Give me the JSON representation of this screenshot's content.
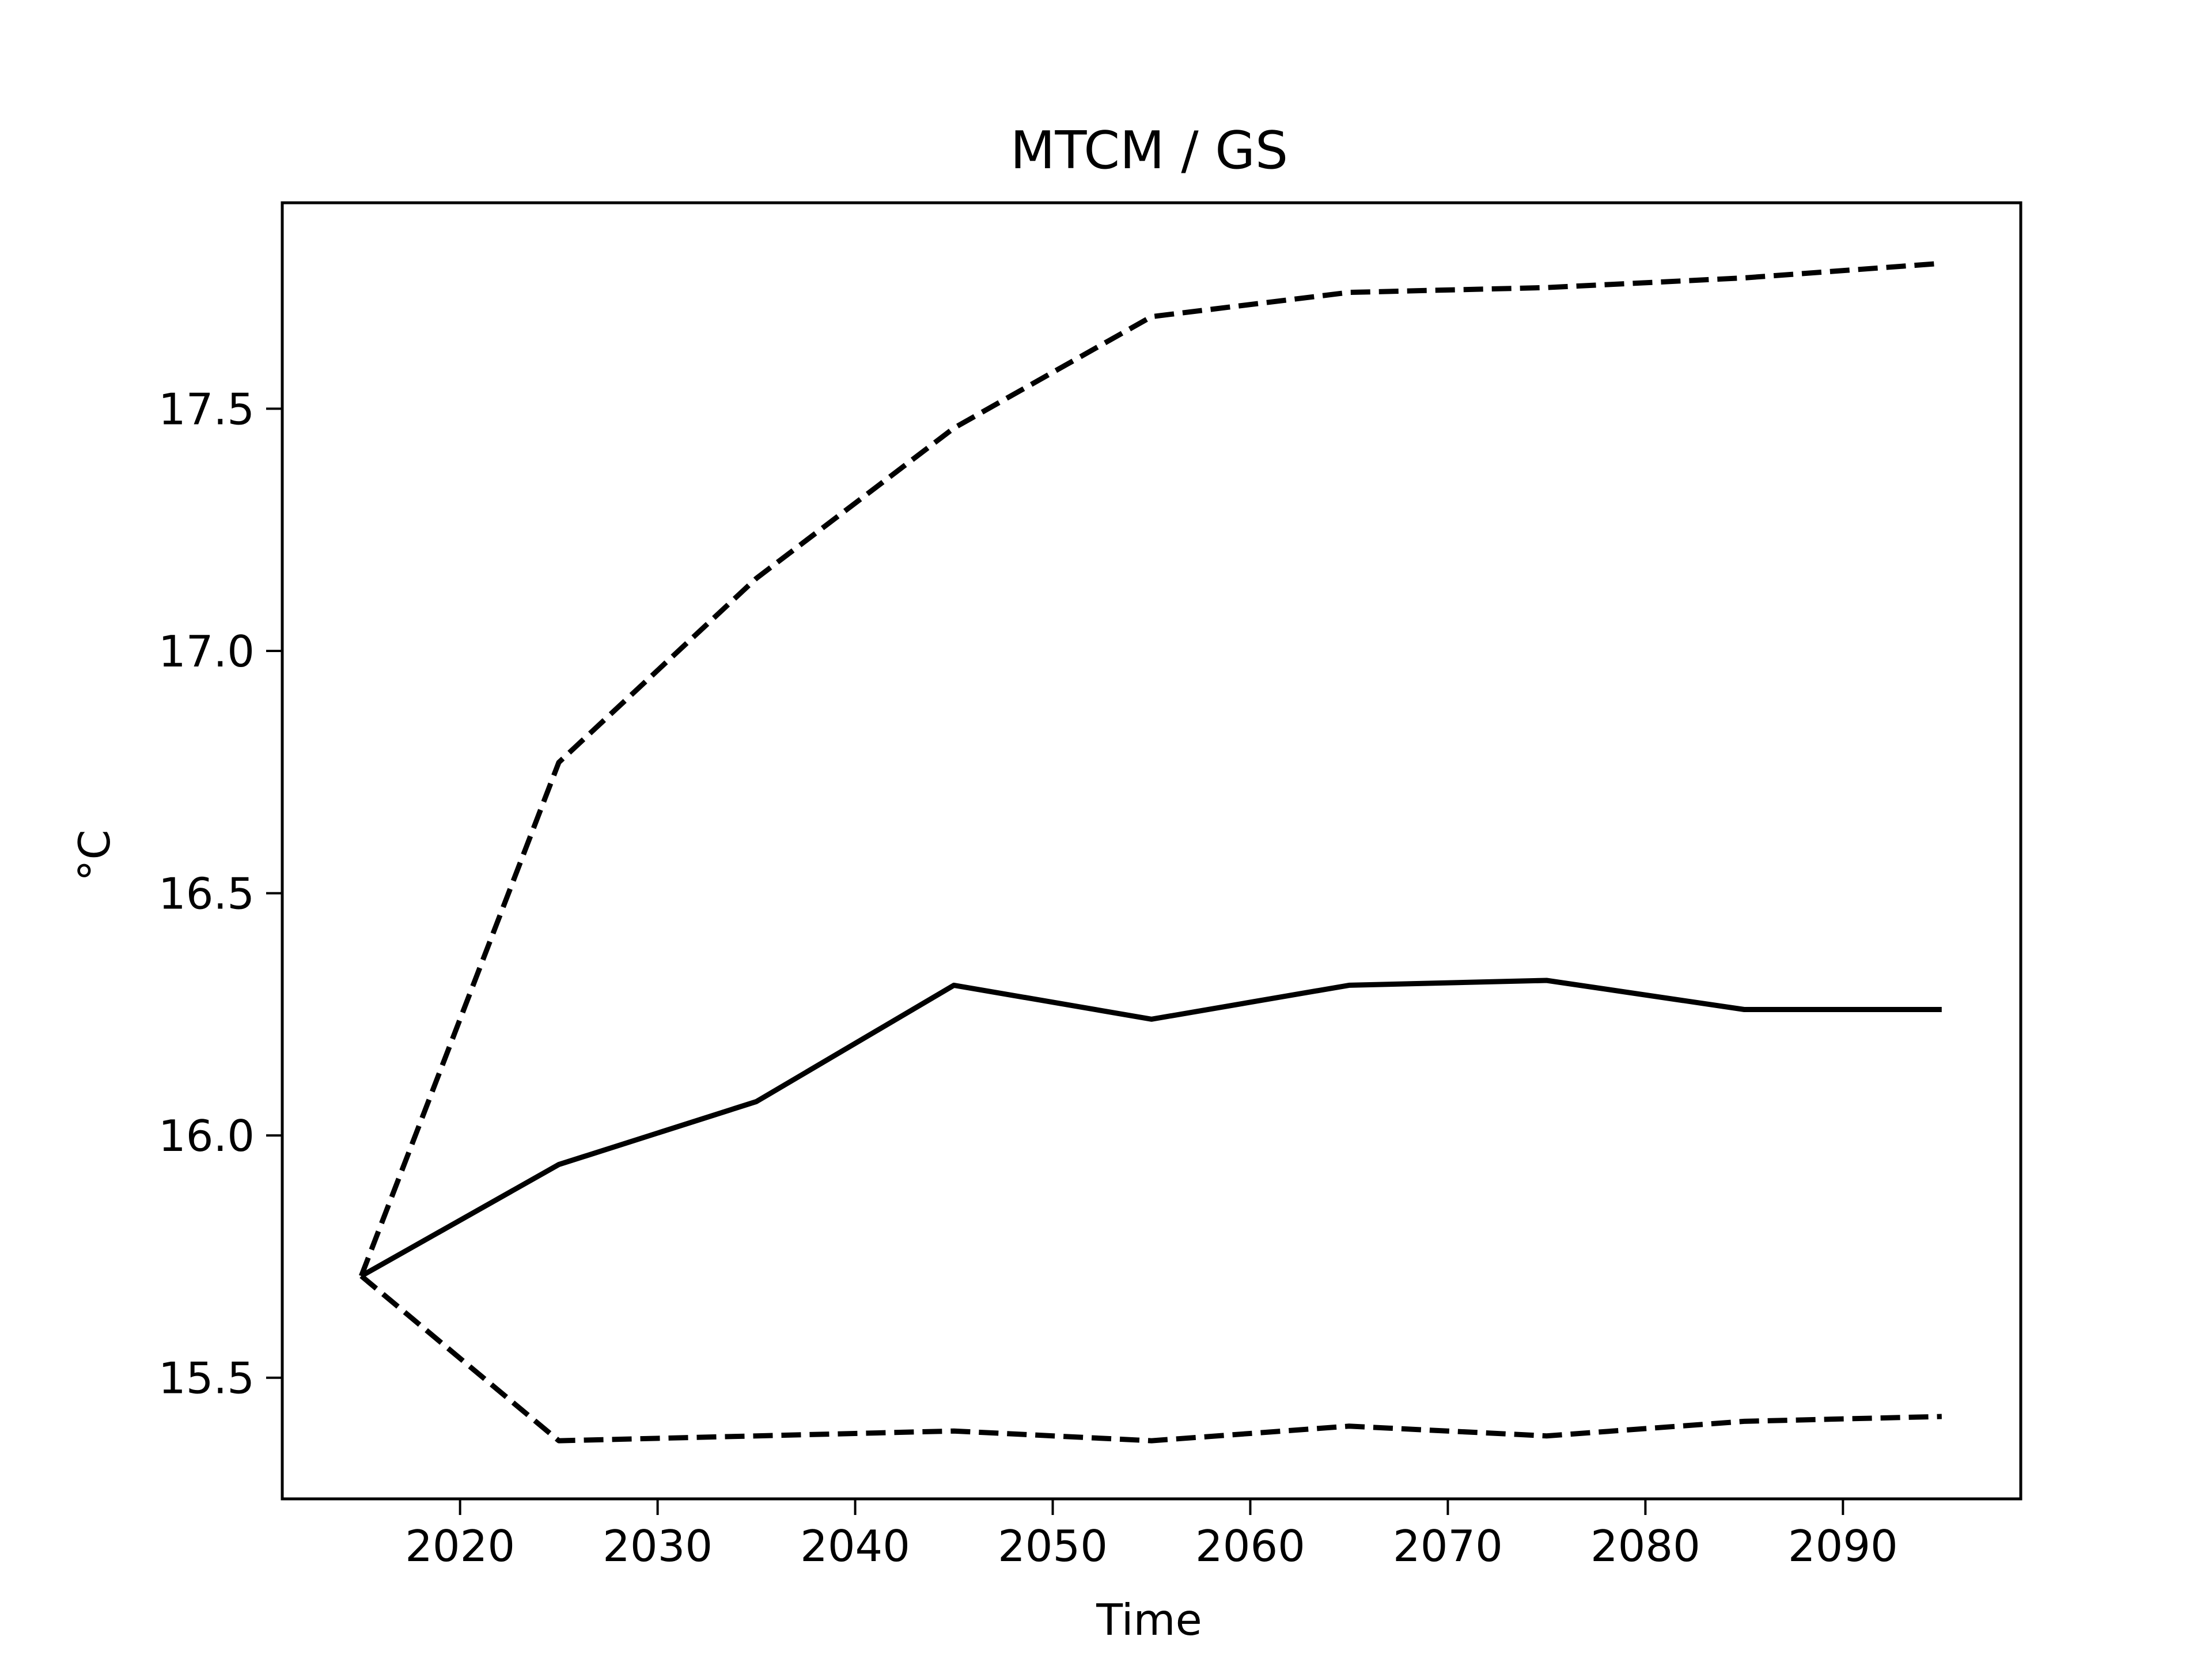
{
  "chart_data": {
    "type": "line",
    "title": "MTCM / GS",
    "xlabel": "Time",
    "ylabel": "°C",
    "xlim": [
      2011,
      2099
    ],
    "ylim": [
      15.25,
      17.925
    ],
    "grid": false,
    "x_ticks": [
      2020,
      2030,
      2040,
      2050,
      2060,
      2070,
      2080,
      2090
    ],
    "y_ticks": [
      15.5,
      16.0,
      16.5,
      17.0,
      17.5
    ],
    "y_tick_labels": [
      "15.5",
      "16.0",
      "16.5",
      "17.0",
      "17.5"
    ],
    "x": [
      2015,
      2025,
      2035,
      2045,
      2055,
      2065,
      2075,
      2085,
      2095
    ],
    "series": [
      {
        "style": "solid",
        "color": "#000000",
        "values": [
          15.71,
          15.94,
          16.07,
          16.31,
          16.24,
          16.31,
          16.32,
          16.26,
          16.26
        ]
      },
      {
        "style": "dashed",
        "color": "#000000",
        "values": [
          15.71,
          16.77,
          17.15,
          17.46,
          17.69,
          17.74,
          17.75,
          17.77,
          17.8
        ]
      },
      {
        "style": "dashed",
        "color": "#000000",
        "values": [
          15.71,
          15.37,
          15.38,
          15.39,
          15.37,
          15.4,
          15.38,
          15.41,
          15.42
        ]
      }
    ]
  }
}
